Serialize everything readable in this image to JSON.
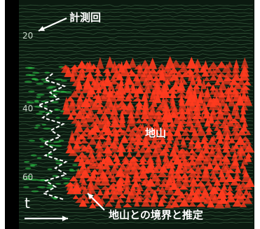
{
  "y_axis": {
    "ticks": [
      "20",
      "40",
      "60"
    ]
  },
  "x_axis": {
    "label": "t"
  },
  "annotations": {
    "measurement_count": "計測回",
    "bedrock": "地山",
    "boundary_estimate": "地山との境界と推定"
  },
  "colors": {
    "background": "#0b1a10",
    "trace_lines": "#3f6b47",
    "bedrock_signal": "#ff3b1f",
    "weak_signal": "#2fd24a",
    "boundary_line": "#ffffff",
    "text": "#ffffff"
  },
  "icons": [
    "arrow-up-left-icon",
    "arrow-right-icon",
    "arrow-up-left-icon"
  ]
}
